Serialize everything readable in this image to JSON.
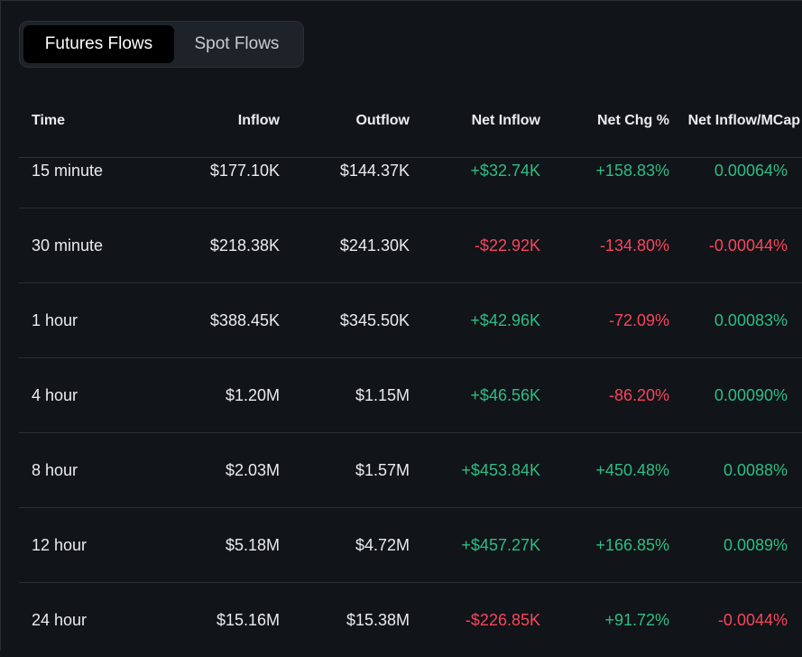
{
  "tabs": [
    {
      "label": "Futures Flows",
      "active": true
    },
    {
      "label": "Spot Flows",
      "active": false
    }
  ],
  "columns": [
    "Time",
    "Inflow",
    "Outflow",
    "Net Inflow",
    "Net Chg %",
    "Net Inflow/MCap"
  ],
  "rows": [
    {
      "time": "15 minute",
      "inflow": "$177.10K",
      "outflow": "$144.37K",
      "net_inflow": "+$32.74K",
      "net_chg": "+158.83%",
      "mcap": "0.00064%"
    },
    {
      "time": "30 minute",
      "inflow": "$218.38K",
      "outflow": "$241.30K",
      "net_inflow": "-$22.92K",
      "net_chg": "-134.80%",
      "mcap": "-0.00044%"
    },
    {
      "time": "1 hour",
      "inflow": "$388.45K",
      "outflow": "$345.50K",
      "net_inflow": "+$42.96K",
      "net_chg": "-72.09%",
      "mcap": "0.00083%"
    },
    {
      "time": "4 hour",
      "inflow": "$1.20M",
      "outflow": "$1.15M",
      "net_inflow": "+$46.56K",
      "net_chg": "-86.20%",
      "mcap": "0.00090%"
    },
    {
      "time": "8 hour",
      "inflow": "$2.03M",
      "outflow": "$1.57M",
      "net_inflow": "+$453.84K",
      "net_chg": "+450.48%",
      "mcap": "0.0088%"
    },
    {
      "time": "12 hour",
      "inflow": "$5.18M",
      "outflow": "$4.72M",
      "net_inflow": "+$457.27K",
      "net_chg": "+166.85%",
      "mcap": "0.0089%"
    },
    {
      "time": "24 hour",
      "inflow": "$15.16M",
      "outflow": "$15.38M",
      "net_inflow": "-$226.85K",
      "net_chg": "+91.72%",
      "mcap": "-0.0044%"
    }
  ],
  "colors": {
    "positive": "#2ebd85",
    "negative": "#f6465d",
    "background": "#111418",
    "tab_container": "#1e2329",
    "tab_active": "#000000"
  }
}
